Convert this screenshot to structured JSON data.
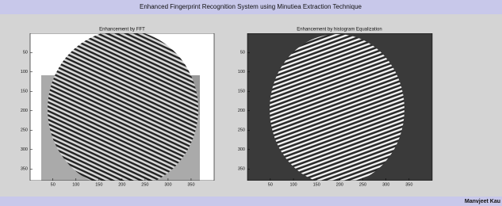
{
  "header": {
    "title": "Enhanced Fingerprint Recognition System using Minutiea Extraction Technique"
  },
  "panels": [
    {
      "title": "Enhancement by FFT",
      "xlim": [
        0.5,
        400
      ],
      "ylim": [
        0.5,
        380
      ],
      "xticks": [
        50,
        100,
        150,
        200,
        250,
        300,
        350
      ],
      "yticks": [
        50,
        100,
        150,
        200,
        250,
        300,
        350
      ]
    },
    {
      "title": "Enhancement by histogram Equalization",
      "xlim": [
        0.5,
        400
      ],
      "ylim": [
        0.5,
        380
      ],
      "xticks": [
        50,
        100,
        150,
        200,
        250,
        300,
        350
      ],
      "yticks": [
        50,
        100,
        150,
        200,
        250,
        300,
        350
      ]
    }
  ],
  "footer": {
    "author": "Manvjeet Kau"
  }
}
